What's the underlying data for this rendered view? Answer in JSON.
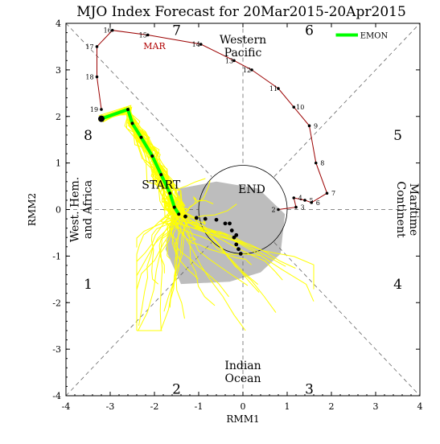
{
  "chart_data": {
    "type": "scatter",
    "title": "MJO Index Forecast for 20Mar2015-20Apr2015",
    "xlabel": "RMM1",
    "ylabel": "RMM2",
    "xlim": [
      -4,
      4
    ],
    "ylim": [
      -4,
      4
    ],
    "x_ticks": [
      "-4",
      "-3",
      "-2",
      "-1",
      "0",
      "1",
      "2",
      "3",
      "4"
    ],
    "y_ticks": [
      "-4",
      "-3",
      "-2",
      "-1",
      "0",
      "1",
      "2",
      "3",
      "4"
    ],
    "grid": false,
    "phases": [
      {
        "label": "1",
        "x": -3.5,
        "y": -1.6
      },
      {
        "label": "2",
        "x": -1.5,
        "y": -3.85
      },
      {
        "label": "3",
        "x": 1.5,
        "y": -3.85
      },
      {
        "label": "4",
        "x": 3.5,
        "y": -1.6
      },
      {
        "label": "5",
        "x": 3.5,
        "y": 1.6
      },
      {
        "label": "6",
        "x": 1.5,
        "y": 3.85
      },
      {
        "label": "7",
        "x": -1.5,
        "y": 3.85
      },
      {
        "label": "8",
        "x": -3.5,
        "y": 1.6
      }
    ],
    "regions": {
      "western_pacific": [
        "Western",
        "Pacific"
      ],
      "indian_ocean": [
        "Indian",
        "Ocean"
      ],
      "maritime_continent": [
        "Maritime",
        "Continent"
      ],
      "west_hem": [
        "West. Hem.",
        "and Africa"
      ]
    },
    "observed": {
      "month_label": "MAR",
      "points": [
        {
          "day": "7",
          "x": 1.9,
          "y": 0.35
        },
        {
          "day": "8",
          "x": 1.65,
          "y": 1.0
        },
        {
          "day": "9",
          "x": 1.5,
          "y": 1.8
        },
        {
          "day": "10",
          "x": 1.15,
          "y": 2.2
        },
        {
          "day": "11",
          "x": 0.8,
          "y": 2.6
        },
        {
          "day": "12",
          "x": 0.2,
          "y": 3.0
        },
        {
          "day": "13",
          "x": -0.2,
          "y": 3.2
        },
        {
          "day": "14",
          "x": -0.95,
          "y": 3.55
        },
        {
          "day": "15",
          "x": -2.15,
          "y": 3.75
        },
        {
          "day": "16",
          "x": -2.95,
          "y": 3.85
        },
        {
          "day": "17",
          "x": -3.3,
          "y": 3.5
        },
        {
          "day": "18",
          "x": -3.3,
          "y": 2.85
        },
        {
          "day": "19",
          "x": -3.2,
          "y": 2.15
        },
        {
          "day": "2",
          "x": 0.8,
          "y": 0.0
        },
        {
          "day": "3",
          "x": 1.2,
          "y": 0.05
        },
        {
          "day": "4",
          "x": 1.15,
          "y": 0.25
        },
        {
          "day": "5",
          "x": 1.4,
          "y": 0.2
        },
        {
          "day": "6",
          "x": 1.55,
          "y": 0.15
        }
      ]
    },
    "ensemble_mean": {
      "name": "EMON",
      "color": "#00ff00",
      "points": [
        [
          -3.2,
          1.95
        ],
        [
          -2.6,
          2.15
        ],
        [
          -2.5,
          1.85
        ],
        [
          -2.3,
          1.55
        ],
        [
          -2.05,
          1.15
        ],
        [
          -1.85,
          0.75
        ],
        [
          -1.65,
          0.35
        ],
        [
          -1.55,
          0.05
        ],
        [
          -1.45,
          -0.1
        ]
      ]
    },
    "forecast_dots": [
      [
        -1.3,
        -0.15
      ],
      [
        -1.05,
        -0.18
      ],
      [
        -0.85,
        -0.2
      ],
      [
        -0.6,
        -0.22
      ],
      [
        -0.4,
        -0.3
      ],
      [
        -0.25,
        -0.45
      ],
      [
        -0.2,
        -0.6
      ],
      [
        -0.15,
        -0.75
      ],
      [
        -0.1,
        -0.85
      ],
      [
        -0.05,
        -0.95
      ],
      [
        -0.3,
        -0.3
      ],
      [
        -0.15,
        -0.55
      ]
    ],
    "labels": {
      "start": "START",
      "end": "END"
    },
    "colors": {
      "observed_line": "#9b0000",
      "ensemble_members": "#ffff00",
      "spread_shade": "#bdbdbd",
      "ensemble_mean": "#00ff00"
    }
  }
}
